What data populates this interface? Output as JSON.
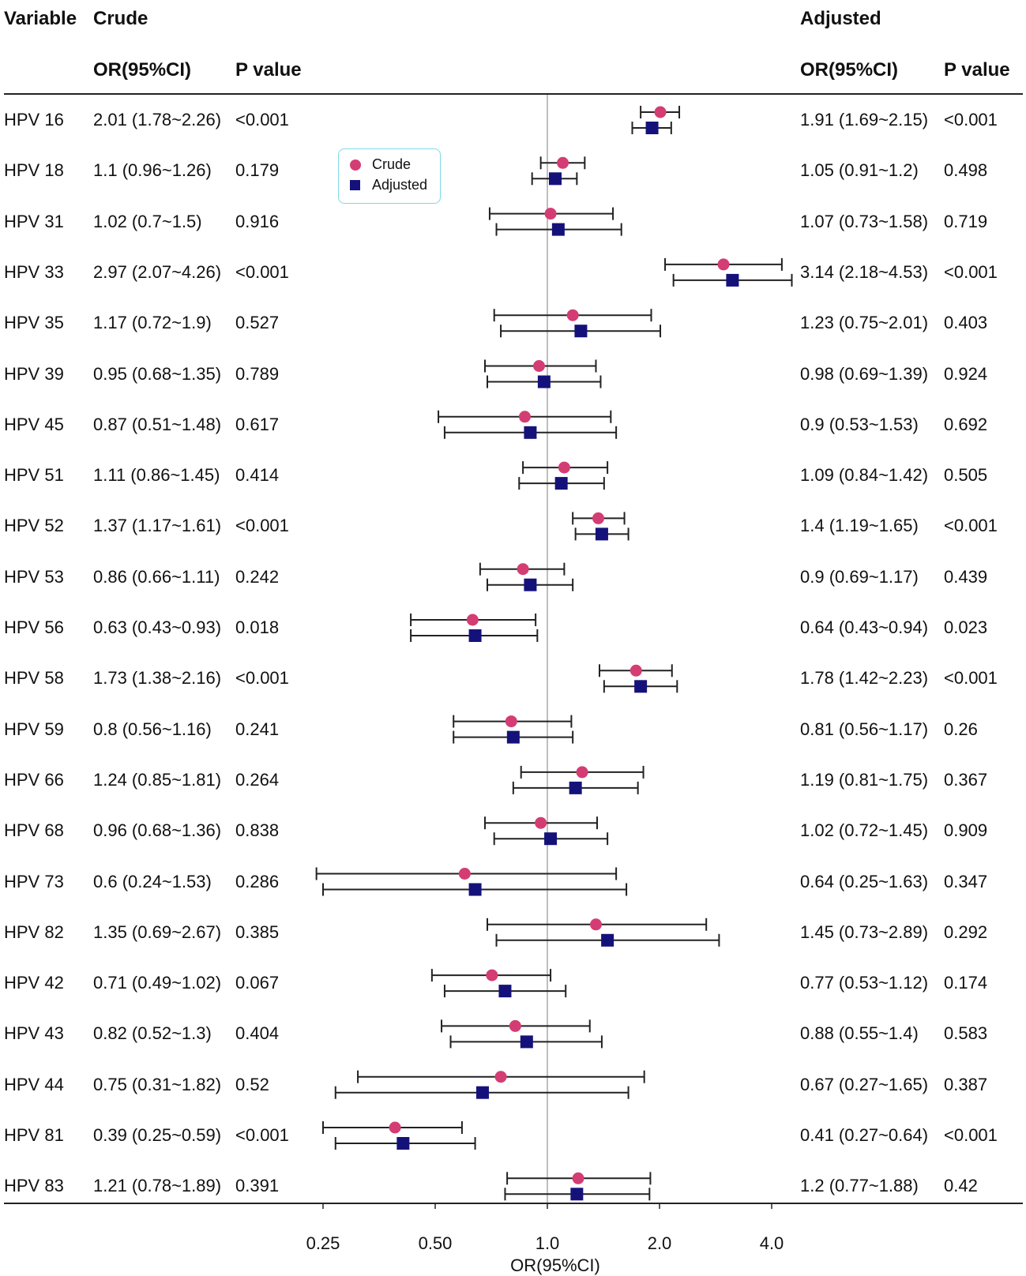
{
  "headers": {
    "variable": "Variable",
    "crude": "Crude",
    "adjusted": "Adjusted",
    "crude_or": "OR(95%CI)",
    "crude_p": "P value",
    "adjusted_or": "OR(95%CI)",
    "adjusted_p": "P value"
  },
  "legend": {
    "crude": "Crude",
    "adjusted": "Adjusted"
  },
  "colors": {
    "crude": "#d43d73",
    "adjusted": "#14127a",
    "ref_line": "#a8a8a8",
    "legend_border": "#7fd9e6"
  },
  "rows": [
    {
      "variable": "HPV 16",
      "crude_or": "2.01 (1.78~2.26)",
      "crude_p": "<0.001",
      "adj_or": "1.91 (1.69~2.15)",
      "adj_p": "<0.001"
    },
    {
      "variable": "HPV 18",
      "crude_or": "1.1 (0.96~1.26)",
      "crude_p": "0.179",
      "adj_or": "1.05 (0.91~1.2)",
      "adj_p": "0.498"
    },
    {
      "variable": "HPV 31",
      "crude_or": "1.02 (0.7~1.5)",
      "crude_p": "0.916",
      "adj_or": "1.07 (0.73~1.58)",
      "adj_p": "0.719"
    },
    {
      "variable": "HPV 33",
      "crude_or": "2.97 (2.07~4.26)",
      "crude_p": "<0.001",
      "adj_or": "3.14 (2.18~4.53)",
      "adj_p": "<0.001"
    },
    {
      "variable": "HPV 35",
      "crude_or": "1.17 (0.72~1.9)",
      "crude_p": "0.527",
      "adj_or": "1.23 (0.75~2.01)",
      "adj_p": "0.403"
    },
    {
      "variable": "HPV 39",
      "crude_or": "0.95 (0.68~1.35)",
      "crude_p": "0.789",
      "adj_or": "0.98 (0.69~1.39)",
      "adj_p": "0.924"
    },
    {
      "variable": "HPV 45",
      "crude_or": "0.87 (0.51~1.48)",
      "crude_p": "0.617",
      "adj_or": "0.9 (0.53~1.53)",
      "adj_p": "0.692"
    },
    {
      "variable": "HPV 51",
      "crude_or": "1.11 (0.86~1.45)",
      "crude_p": "0.414",
      "adj_or": "1.09 (0.84~1.42)",
      "adj_p": "0.505"
    },
    {
      "variable": "HPV 52",
      "crude_or": "1.37 (1.17~1.61)",
      "crude_p": "<0.001",
      "adj_or": "1.4 (1.19~1.65)",
      "adj_p": "<0.001"
    },
    {
      "variable": "HPV 53",
      "crude_or": "0.86 (0.66~1.11)",
      "crude_p": "0.242",
      "adj_or": "0.9 (0.69~1.17)",
      "adj_p": "0.439"
    },
    {
      "variable": "HPV 56",
      "crude_or": "0.63 (0.43~0.93)",
      "crude_p": "0.018",
      "adj_or": "0.64 (0.43~0.94)",
      "adj_p": "0.023"
    },
    {
      "variable": "HPV 58",
      "crude_or": "1.73 (1.38~2.16)",
      "crude_p": "<0.001",
      "adj_or": "1.78 (1.42~2.23)",
      "adj_p": "<0.001"
    },
    {
      "variable": "HPV 59",
      "crude_or": "0.8 (0.56~1.16)",
      "crude_p": "0.241",
      "adj_or": "0.81 (0.56~1.17)",
      "adj_p": "0.26"
    },
    {
      "variable": "HPV 66",
      "crude_or": "1.24 (0.85~1.81)",
      "crude_p": "0.264",
      "adj_or": "1.19 (0.81~1.75)",
      "adj_p": "0.367"
    },
    {
      "variable": "HPV 68",
      "crude_or": "0.96 (0.68~1.36)",
      "crude_p": "0.838",
      "adj_or": "1.02 (0.72~1.45)",
      "adj_p": "0.909"
    },
    {
      "variable": "HPV 73",
      "crude_or": "0.6 (0.24~1.53)",
      "crude_p": "0.286",
      "adj_or": "0.64 (0.25~1.63)",
      "adj_p": "0.347"
    },
    {
      "variable": "HPV 82",
      "crude_or": "1.35 (0.69~2.67)",
      "crude_p": "0.385",
      "adj_or": "1.45 (0.73~2.89)",
      "adj_p": "0.292"
    },
    {
      "variable": "HPV 42",
      "crude_or": "0.71 (0.49~1.02)",
      "crude_p": "0.067",
      "adj_or": "0.77 (0.53~1.12)",
      "adj_p": "0.174"
    },
    {
      "variable": "HPV 43",
      "crude_or": "0.82 (0.52~1.3)",
      "crude_p": "0.404",
      "adj_or": "0.88 (0.55~1.4)",
      "adj_p": "0.583"
    },
    {
      "variable": "HPV 44",
      "crude_or": "0.75 (0.31~1.82)",
      "crude_p": "0.52",
      "adj_or": "0.67 (0.27~1.65)",
      "adj_p": "0.387"
    },
    {
      "variable": "HPV 81",
      "crude_or": "0.39 (0.25~0.59)",
      "crude_p": "<0.001",
      "adj_or": "0.41 (0.27~0.64)",
      "adj_p": "<0.001"
    },
    {
      "variable": "HPV 83",
      "crude_or": "1.21 (0.78~1.89)",
      "crude_p": "0.391",
      "adj_or": "1.2 (0.77~1.88)",
      "adj_p": "0.42"
    }
  ],
  "chart_data": {
    "type": "forest",
    "xscale": "log2",
    "xlabel": "OR(95%CI)",
    "xticks": [
      0.25,
      0.5,
      1.0,
      2.0,
      4.0
    ],
    "xtick_labels": [
      "0.25",
      "0.50",
      "1.0",
      "2.0",
      "4.0"
    ],
    "reference_line": 1.0,
    "categories": [
      "HPV 16",
      "HPV 18",
      "HPV 31",
      "HPV 33",
      "HPV 35",
      "HPV 39",
      "HPV 45",
      "HPV 51",
      "HPV 52",
      "HPV 53",
      "HPV 56",
      "HPV 58",
      "HPV 59",
      "HPV 66",
      "HPV 68",
      "HPV 73",
      "HPV 82",
      "HPV 42",
      "HPV 43",
      "HPV 44",
      "HPV 81",
      "HPV 83"
    ],
    "series": [
      {
        "name": "Crude",
        "marker": "circle",
        "or": [
          2.01,
          1.1,
          1.02,
          2.97,
          1.17,
          0.95,
          0.87,
          1.11,
          1.37,
          0.86,
          0.63,
          1.73,
          0.8,
          1.24,
          0.96,
          0.6,
          1.35,
          0.71,
          0.82,
          0.75,
          0.39,
          1.21
        ],
        "lower": [
          1.78,
          0.96,
          0.7,
          2.07,
          0.72,
          0.68,
          0.51,
          0.86,
          1.17,
          0.66,
          0.43,
          1.38,
          0.56,
          0.85,
          0.68,
          0.24,
          0.69,
          0.49,
          0.52,
          0.31,
          0.25,
          0.78
        ],
        "upper": [
          2.26,
          1.26,
          1.5,
          4.26,
          1.9,
          1.35,
          1.48,
          1.45,
          1.61,
          1.11,
          0.93,
          2.16,
          1.16,
          1.81,
          1.36,
          1.53,
          2.67,
          1.02,
          1.3,
          1.82,
          0.59,
          1.89
        ]
      },
      {
        "name": "Adjusted",
        "marker": "square",
        "or": [
          1.91,
          1.05,
          1.07,
          3.14,
          1.23,
          0.98,
          0.9,
          1.09,
          1.4,
          0.9,
          0.64,
          1.78,
          0.81,
          1.19,
          1.02,
          0.64,
          1.45,
          0.77,
          0.88,
          0.67,
          0.41,
          1.2
        ],
        "lower": [
          1.69,
          0.91,
          0.73,
          2.18,
          0.75,
          0.69,
          0.53,
          0.84,
          1.19,
          0.69,
          0.43,
          1.42,
          0.56,
          0.81,
          0.72,
          0.25,
          0.73,
          0.53,
          0.55,
          0.27,
          0.27,
          0.77
        ],
        "upper": [
          2.15,
          1.2,
          1.58,
          4.53,
          2.01,
          1.39,
          1.53,
          1.42,
          1.65,
          1.17,
          0.94,
          2.23,
          1.17,
          1.75,
          1.45,
          1.63,
          2.89,
          1.12,
          1.4,
          1.65,
          0.64,
          1.88
        ]
      }
    ]
  }
}
